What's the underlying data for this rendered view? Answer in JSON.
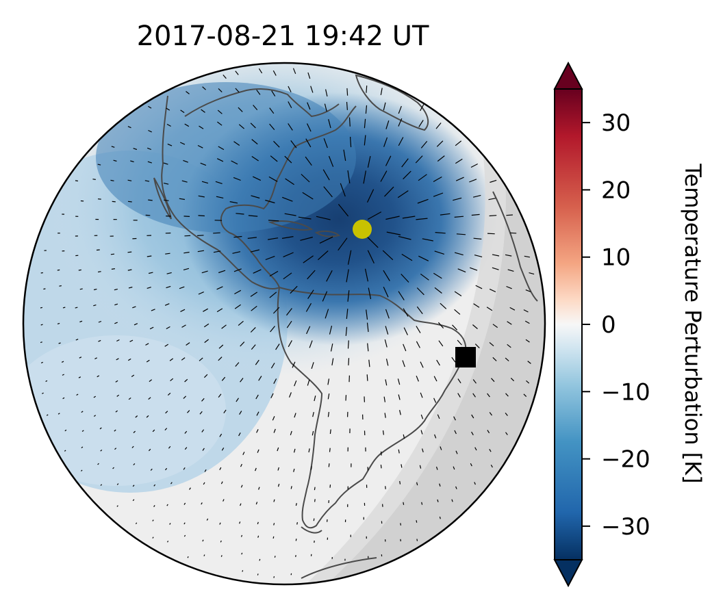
{
  "title": "2017-08-21  19:42 UT",
  "map": {
    "projection": "orthographic",
    "field": "temperature perturbation",
    "night_shading": true,
    "coastlines": true,
    "wind_vectors": true,
    "markers": [
      {
        "name": "yellow circle",
        "color": "#c8c200",
        "shape": "circle",
        "region": "Caribbean / western Atlantic"
      },
      {
        "name": "black square",
        "color": "#000000",
        "shape": "square",
        "region": "eastern tip of Brazil"
      }
    ]
  },
  "colorbar": {
    "label": "Temperature Perturbation [K]",
    "colormap": "RdBu_r",
    "range": [
      -35,
      35
    ],
    "extend": "both",
    "ticks": [
      "30",
      "20",
      "10",
      "0",
      "−10",
      "−20",
      "−30"
    ],
    "tick_values": [
      30,
      20,
      10,
      0,
      -10,
      -20,
      -30
    ],
    "colors": {
      "min": "#053061",
      "mid": "#f7f7f7",
      "max": "#67001f"
    }
  }
}
